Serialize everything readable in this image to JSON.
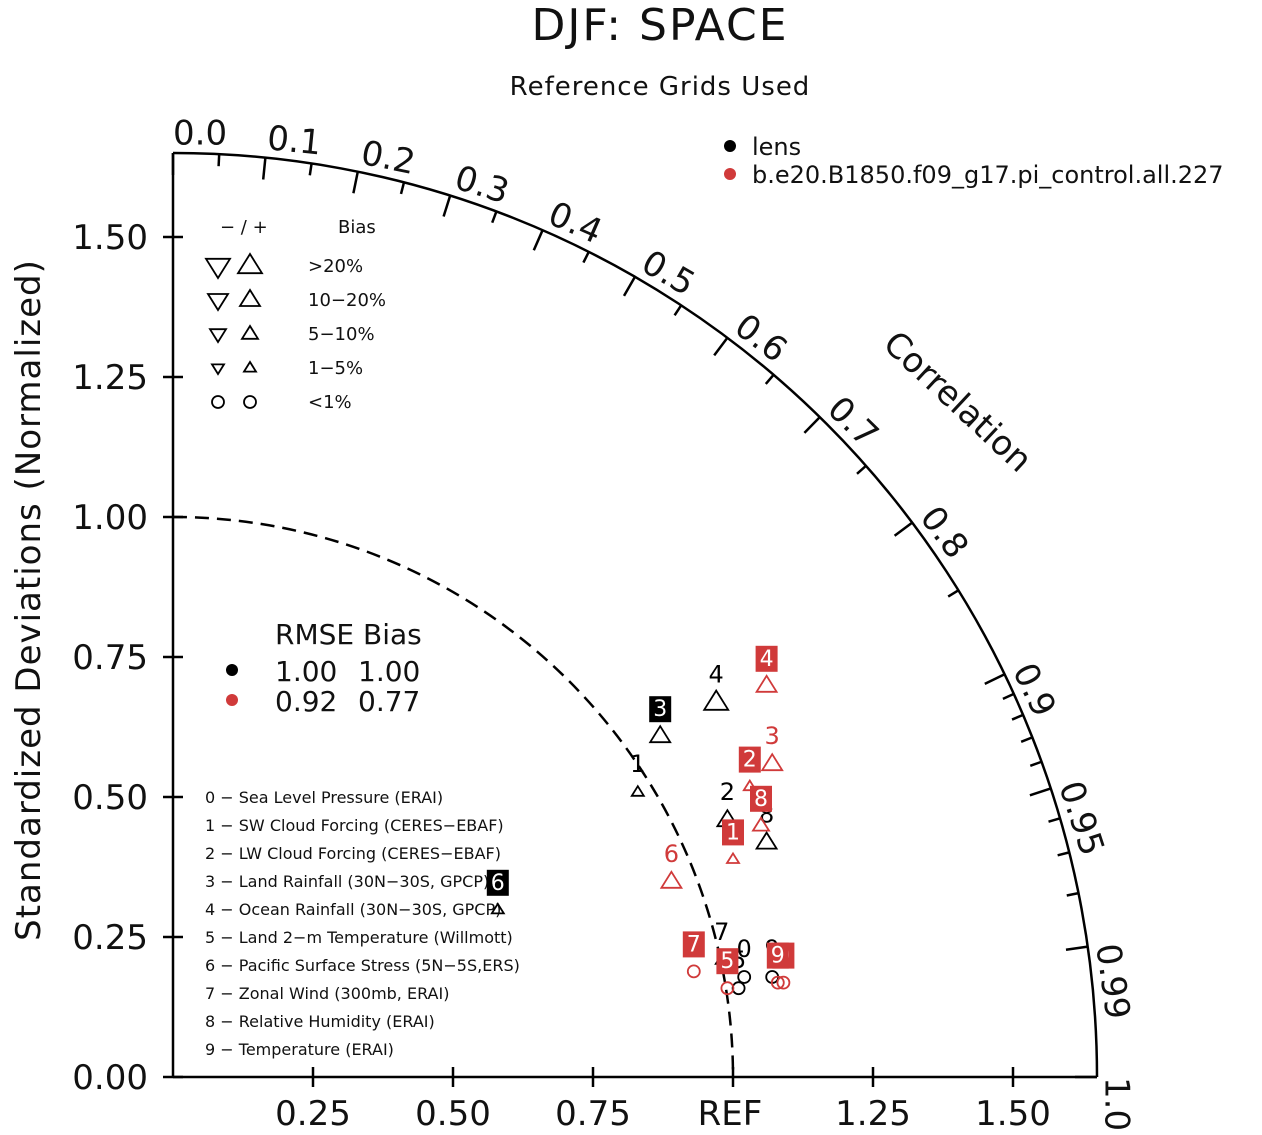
{
  "chart_data": {
    "type": "taylor",
    "title": "DJF: SPACE",
    "subtitle": "Reference Grids Used",
    "ylabel": "Standardized Deviations (Normalized)",
    "corr_label": "Correlation",
    "ref_label": "REF",
    "std_range": [
      0,
      1.65
    ],
    "y_ticks": [
      "0.00",
      "0.25",
      "0.50",
      "0.75",
      "1.00",
      "1.25",
      "1.50"
    ],
    "x_ticks": [
      "0.25",
      "0.50",
      "0.75",
      "1.25",
      "1.50"
    ],
    "corr_ticks": [
      "0.0",
      "0.1",
      "0.2",
      "0.3",
      "0.4",
      "0.5",
      "0.6",
      "0.7",
      "0.8",
      "0.9",
      "0.95",
      "0.99",
      "1.0"
    ],
    "legend": {
      "position": "top-right",
      "entries": [
        {
          "name": "lens",
          "color": "#000000"
        },
        {
          "name": "b.e20.B1850.f09_g17.pi_control.all.227",
          "color": "#d03a3a"
        }
      ]
    },
    "bias_legend": {
      "header_signs": "− / +",
      "header_bias": "Bias",
      "rows": [
        {
          "label": ">20%",
          "marker": "triangle",
          "size": 12
        },
        {
          "label": "10−20%",
          "marker": "triangle",
          "size": 10
        },
        {
          "label": "5−10%",
          "marker": "triangle",
          "size": 8
        },
        {
          "label": "1−5%",
          "marker": "triangle",
          "size": 6
        },
        {
          "label": "<1%",
          "marker": "circle",
          "size": 6
        }
      ]
    },
    "rmse_table": {
      "header": "RMSE Bias",
      "rows": [
        {
          "color": "#000000",
          "rmse": "1.00",
          "bias": "1.00"
        },
        {
          "color": "#d03a3a",
          "rmse": "0.92",
          "bias": "0.77"
        }
      ]
    },
    "variables": [
      "0 − Sea Level Pressure (ERAI)",
      "1 − SW Cloud Forcing (CERES−EBAF)",
      "2 − LW Cloud Forcing (CERES−EBAF)",
      "3 − Land Rainfall (30N−30S, GPCP)",
      "4 − Ocean Rainfall (30N−30S, GPCP)",
      "5 − Land 2−m Temperature (Willmott)",
      "6 − Pacific Surface Stress (5N−5S,ERS)",
      "7 − Zonal Wind (300mb, ERAI)",
      "8 − Relative Humidity (ERAI)",
      "9 − Temperature (ERAI)"
    ],
    "series": [
      {
        "name": "lens",
        "color": "#000000",
        "points": [
          {
            "id": "0",
            "x": 1.02,
            "y": 0.2,
            "marker": "circle",
            "size": 6,
            "boxed": false
          },
          {
            "id": "1",
            "x": 0.83,
            "y": 0.53,
            "marker": "triangle",
            "size": 6,
            "boxed": false
          },
          {
            "id": "2",
            "x": 0.99,
            "y": 0.48,
            "marker": "triangle",
            "size": 10,
            "boxed": false
          },
          {
            "id": "3",
            "x": 0.87,
            "y": 0.63,
            "marker": "triangle",
            "size": 10,
            "boxed": true
          },
          {
            "id": "4",
            "x": 0.97,
            "y": 0.69,
            "marker": "triangle",
            "size": 12,
            "boxed": false
          },
          {
            "id": "5",
            "x": 1.01,
            "y": 0.18,
            "marker": "circle",
            "size": 6,
            "boxed": false
          },
          {
            "id": "6",
            "x": 0.58,
            "y": 0.32,
            "marker": "triangle",
            "size": 6,
            "boxed": true
          },
          {
            "id": "7",
            "x": 0.98,
            "y": 0.23,
            "marker": "triangle",
            "size": 6,
            "boxed": false
          },
          {
            "id": "8",
            "x": 1.06,
            "y": 0.44,
            "marker": "triangle",
            "size": 10,
            "boxed": false
          },
          {
            "id": "9",
            "x": 1.07,
            "y": 0.2,
            "marker": "circle",
            "size": 6,
            "boxed": false
          }
        ]
      },
      {
        "name": "b.e20.B1850.f09_g17.pi_control.all.227",
        "color": "#d03a3a",
        "points": [
          {
            "id": "0",
            "x": 1.09,
            "y": 0.19,
            "marker": "circle",
            "size": 6,
            "boxed": true
          },
          {
            "id": "1",
            "x": 1.0,
            "y": 0.41,
            "marker": "triangle",
            "size": 6,
            "boxed": true
          },
          {
            "id": "2",
            "x": 1.03,
            "y": 0.54,
            "marker": "triangle",
            "size": 6,
            "boxed": true
          },
          {
            "id": "3",
            "x": 1.07,
            "y": 0.58,
            "marker": "triangle",
            "size": 10,
            "boxed": false
          },
          {
            "id": "4",
            "x": 1.06,
            "y": 0.72,
            "marker": "triangle",
            "size": 10,
            "boxed": true
          },
          {
            "id": "5",
            "x": 0.99,
            "y": 0.18,
            "marker": "circle",
            "size": 6,
            "boxed": true
          },
          {
            "id": "6",
            "x": 0.89,
            "y": 0.37,
            "marker": "triangle",
            "size": 10,
            "boxed": false
          },
          {
            "id": "7",
            "x": 0.93,
            "y": 0.21,
            "marker": "circle",
            "size": 6,
            "boxed": true
          },
          {
            "id": "8",
            "x": 1.05,
            "y": 0.47,
            "marker": "triangle",
            "size": 8,
            "boxed": true
          },
          {
            "id": "9",
            "x": 1.08,
            "y": 0.19,
            "marker": "circle",
            "size": 6,
            "boxed": true
          }
        ]
      }
    ]
  }
}
